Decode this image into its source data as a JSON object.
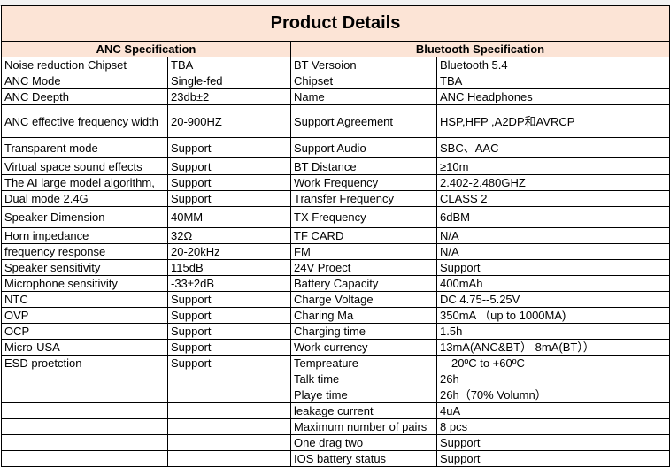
{
  "title": "Product Details",
  "sections": {
    "anc": "ANC Specification",
    "bluetooth": "Bluetooth Specification"
  },
  "rows": [
    {
      "anc_label": "Noise reduction Chipset",
      "anc_value": "TBA",
      "bt_label": "BT Versoion",
      "bt_value": "Bluetooth 5.4"
    },
    {
      "anc_label": "ANC Mode",
      "anc_value": "Single-fed",
      "bt_label": "Chipset",
      "bt_value": "TBA"
    },
    {
      "anc_label": "ANC Deepth",
      "anc_value": "23db±2",
      "bt_label": "Name",
      "bt_value": "ANC Headphones"
    },
    {
      "anc_label": "ANC effective frequency width",
      "anc_value": "20-900HZ",
      "bt_label": "Support Agreement",
      "bt_value": "HSP,HFP ,A2DP和AVRCP"
    },
    {
      "anc_label": "Transparent mode",
      "anc_value": "Support",
      "bt_label": "Support Audio",
      "bt_value": "SBC、AAC"
    },
    {
      "anc_label": "Virtual space sound effects",
      "anc_value": "Support",
      "bt_label": "BT Distance",
      "bt_value": "≥10m"
    },
    {
      "anc_label": "The AI large model algorithm,",
      "anc_value": "Support",
      "bt_label": "Work Frequency",
      "bt_value": "2.402-2.480GHZ"
    },
    {
      "anc_label": "Dual mode 2.4G",
      "anc_value": "Support",
      "bt_label": "Transfer Frequency",
      "bt_value": "CLASS 2"
    },
    {
      "anc_label": "Speaker Dimension",
      "anc_value": "40MM",
      "bt_label": "TX Frequency",
      "bt_value": "6dBM"
    },
    {
      "anc_label": "Horn impedance",
      "anc_value": "32Ω",
      "bt_label": "TF CARD",
      "bt_value": "N/A"
    },
    {
      "anc_label": "frequency response",
      "anc_value": "20-20kHz",
      "bt_label": "FM",
      "bt_value": "N/A"
    },
    {
      "anc_label": "Speaker sensitivity",
      "anc_value": "115dB",
      "bt_label": "24V Proect",
      "bt_value": "Support"
    },
    {
      "anc_label": "Microphone sensitivity",
      "anc_value": " -33±2dB",
      "bt_label": "Battery Capacity",
      "bt_value": "400mAh"
    },
    {
      "anc_label": "NTC",
      "anc_value": "Support",
      "bt_label": "Charge Voltage",
      "bt_value": "DC 4.75--5.25V"
    },
    {
      "anc_label": "OVP",
      "anc_value": "Support",
      "bt_label": "Charing Ma",
      "bt_value": "350mA （up to 1000MA)"
    },
    {
      "anc_label": "OCP",
      "anc_value": "Support",
      "bt_label": "Charging time",
      "bt_value": "1.5h"
    },
    {
      "anc_label": "Micro-USA",
      "anc_value": "Support",
      "bt_label": "Work currency",
      "bt_value": "13mA(ANC&BT） 8mA(BT））"
    },
    {
      "anc_label": "ESD proetction",
      "anc_value": "Support",
      "bt_label": "Tempreature",
      "bt_value": "—20ºC to +60ºC"
    },
    {
      "anc_label": "",
      "anc_value": "",
      "bt_label": "Talk time",
      "bt_value": "26h"
    },
    {
      "anc_label": "",
      "anc_value": "",
      "bt_label": "Playe time",
      "bt_value": "26h（70% Volumn）"
    },
    {
      "anc_label": "",
      "anc_value": "",
      "bt_label": "leakage current",
      "bt_value": "4uA"
    },
    {
      "anc_label": "",
      "anc_value": "",
      "bt_label": "Maximum number of pairs",
      "bt_value": "8 pcs"
    },
    {
      "anc_label": "",
      "anc_value": "",
      "bt_label": "One drag two",
      "bt_value": "Support"
    },
    {
      "anc_label": "",
      "anc_value": "",
      "bt_label": "IOS battery status",
      "bt_value": "Support"
    }
  ]
}
